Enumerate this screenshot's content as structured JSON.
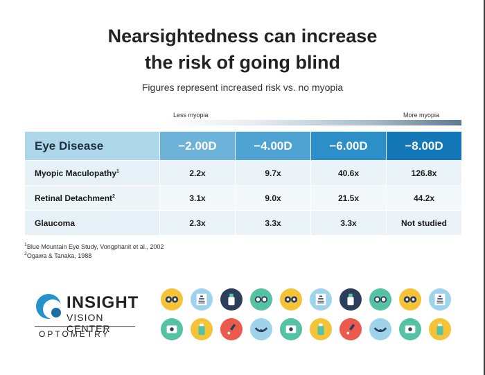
{
  "title_line1": "Nearsightedness can increase",
  "title_line2": "the risk of going blind",
  "subtitle": "Figures represent increased risk vs. no myopia",
  "scale": {
    "less": "Less myopia",
    "more": "More myopia"
  },
  "chart_data": {
    "type": "table",
    "columns": [
      "Eye Disease",
      "−2.00D",
      "−4.00D",
      "−6.00D",
      "−8.00D"
    ],
    "rows": [
      {
        "label": "Myopic Maculopathy",
        "sup": "1",
        "values": [
          "2.2x",
          "9.7x",
          "40.6x",
          "126.8x"
        ]
      },
      {
        "label": "Retinal Detachment",
        "sup": "2",
        "values": [
          "3.1x",
          "9.0x",
          "21.5x",
          "44.2x"
        ]
      },
      {
        "label": "Glaucoma",
        "sup": "",
        "values": [
          "2.3x",
          "3.3x",
          "3.3x",
          "Not studied"
        ]
      }
    ]
  },
  "footnotes": [
    {
      "mark": "1",
      "text": "Blue Mountain Eye Study, Vongphanit et al., 2002"
    },
    {
      "mark": "2",
      "text": "Ogawa & Tanaka, 1988"
    }
  ],
  "logo": {
    "line1": "INSIGHT",
    "line2": "VISION CENTER",
    "line3": "OPTOMETRY"
  },
  "colors": {
    "yellow": "#f4c338",
    "light_blue": "#9fd3eb",
    "navy": "#2c3e5c",
    "teal": "#56c2a4",
    "red": "#ea5a4d",
    "header_first": "#aed7ea",
    "header_darkest": "#1477b7"
  },
  "icons_row1": [
    "phoropter-icon",
    "eye-chart-icon",
    "eye-drops-icon",
    "glasses-icon",
    "phoropter-icon",
    "eye-chart-icon",
    "eye-drops-icon",
    "glasses-icon",
    "phoropter-icon",
    "eye-chart-icon"
  ],
  "icons_row2": [
    "eye-exam-icon",
    "bottle-icon",
    "dropper-icon",
    "closed-eye-icon",
    "eye-exam-icon",
    "bottle-icon",
    "dropper-icon",
    "closed-eye-icon",
    "eye-exam-icon",
    "bottle-icon"
  ]
}
